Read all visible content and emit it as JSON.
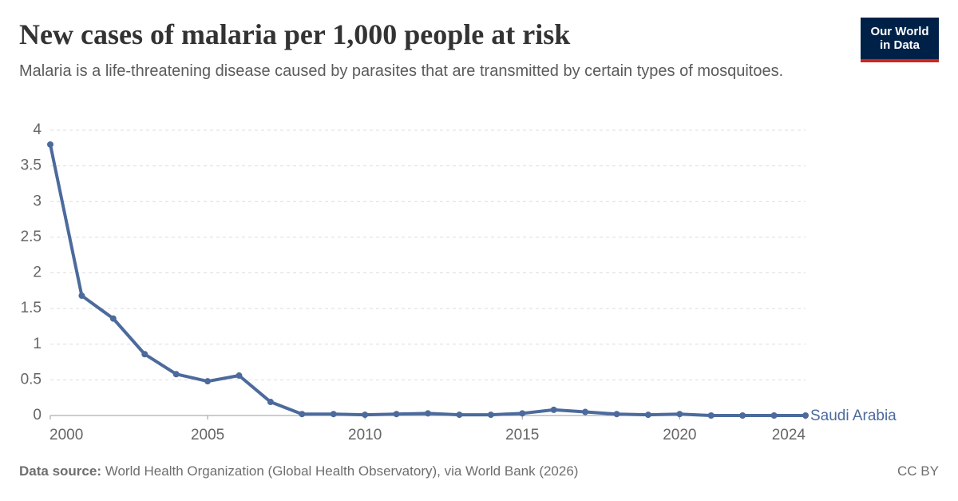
{
  "chart_data": {
    "type": "line",
    "title": "New cases of malaria per 1,000 people at risk",
    "subtitle": "Malaria is a life-threatening disease caused by parasites that are transmitted by certain types of mosquitoes.",
    "source_label": "Data source:",
    "source": "World Health Organization (Global Health Observatory), via World Bank (2026)",
    "license": "CC BY",
    "logo": [
      "Our World",
      "in Data"
    ],
    "x": [
      2000,
      2001,
      2002,
      2003,
      2004,
      2005,
      2006,
      2007,
      2008,
      2009,
      2010,
      2011,
      2012,
      2013,
      2014,
      2015,
      2016,
      2017,
      2018,
      2019,
      2020,
      2021,
      2022,
      2023,
      2024
    ],
    "series": [
      {
        "name": "Saudi Arabia",
        "color": "#4c6a9c",
        "values": [
          3.8,
          1.68,
          1.36,
          0.86,
          0.58,
          0.48,
          0.56,
          0.19,
          0.02,
          0.02,
          0.01,
          0.02,
          0.03,
          0.01,
          0.01,
          0.03,
          0.08,
          0.05,
          0.02,
          0.01,
          0.02,
          0,
          0,
          0,
          0
        ]
      }
    ],
    "xlim": [
      2000,
      2024
    ],
    "xticks": [
      2000,
      2005,
      2010,
      2015,
      2020,
      2024
    ],
    "ylim": [
      0,
      4
    ],
    "yticks": [
      0,
      0.5,
      1,
      1.5,
      2,
      2.5,
      3,
      3.5,
      4
    ],
    "grid": true
  }
}
